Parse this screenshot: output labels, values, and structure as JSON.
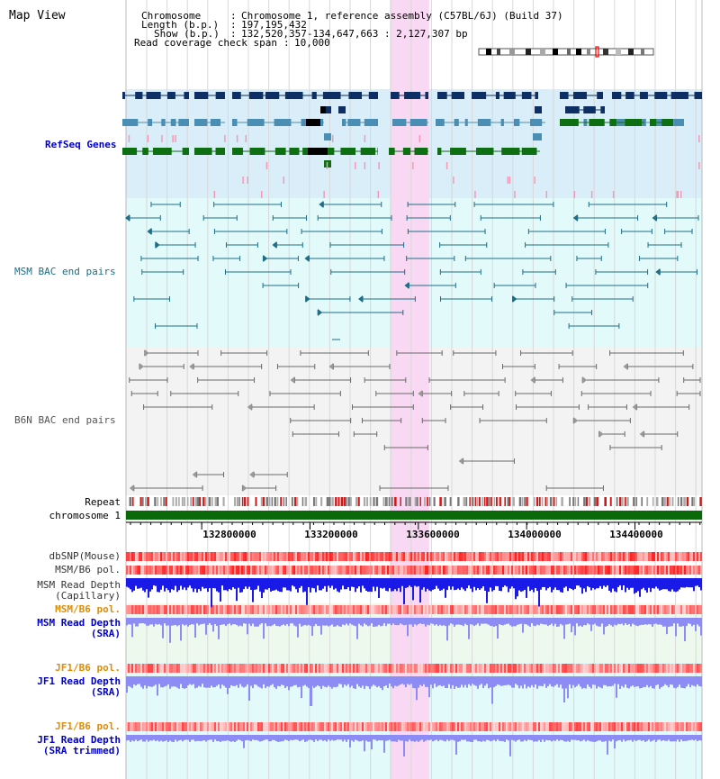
{
  "view": {
    "title": "Map View"
  },
  "header": {
    "chromosome_key": "Chromosome",
    "chromosome_val": "Chromosome 1, reference assembly (C57BL/6J) (Build 37)",
    "length_key": "Length (b.p.)",
    "length_val": "197,195,432",
    "show_key": "Show (b.p.)",
    "show_val": "132,520,357-134,647,663 : 2,127,307 bp",
    "coverage_key": "Read coverage check span",
    "coverage_val": "10,000"
  },
  "tracks": {
    "refseq": "RefSeq Genes",
    "msm_bac": "MSM BAC end pairs",
    "b6n_bac": "B6N BAC end pairs",
    "repeat": "Repeat",
    "chromosome": "chromosome 1",
    "dbsnp": "dbSNP(Mouse)",
    "msm_b6_pol": "MSM/B6 pol.",
    "msm_depth_cap_1": "MSM Read Depth",
    "msm_depth_cap_2": "(Capillary)",
    "msm_b6_pol2": "MSM/B6 pol.",
    "msm_depth_sra_1": "MSM Read Depth",
    "msm_depth_sra_2": "(SRA)",
    "jf1_b6_pol": "JF1/B6 pol.",
    "jf1_depth_sra_1": "JF1 Read Depth",
    "jf1_depth_sra_2": "(SRA)",
    "jf1_b6_pol2": "JF1/B6 pol.",
    "jf1_depth_trim_1": "JF1 Read Depth",
    "jf1_depth_trim_2": "(SRA trimmed)"
  },
  "axis": {
    "ticks": [
      "132800000",
      "133200000",
      "133600000",
      "134000000",
      "134400000"
    ]
  },
  "colors": {
    "refseq_bg": "#d9eef9",
    "msm_bg": "#e2fafa",
    "b6n_bg": "#f3f3f3",
    "highlight": "#f8d8f2",
    "gene_navy": "#0d2f63",
    "gene_teal": "#4a8fb3",
    "gene_green": "#0e6e12",
    "msm_line": "#1f6e88",
    "b6n_line": "#6a6a6a",
    "chromosome": "#0a6a0a",
    "depth_dark": "#1a1ae8",
    "depth_light": "#8c8cf4",
    "label_blue": "#0000cc",
    "label_teal": "#1b6f88",
    "label_orange": "#e08c00",
    "label_gray": "#333333"
  },
  "highlight_region": {
    "start": 133495000,
    "end": 133640000
  },
  "view_range": {
    "start": 132520357,
    "end": 134647663
  }
}
